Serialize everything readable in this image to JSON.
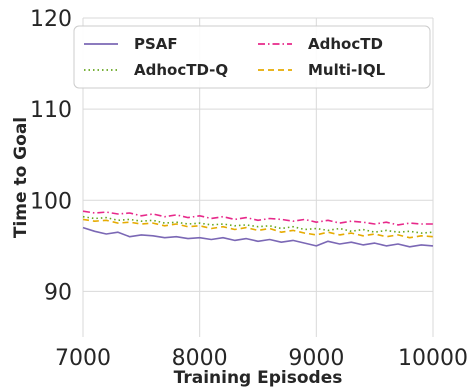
{
  "chart_data": {
    "type": "line",
    "xlabel": "Training Episodes",
    "ylabel": "Time to Goal",
    "xlim": [
      7000,
      10000
    ],
    "ylim": [
      85,
      120
    ],
    "xticks": [
      7000,
      8000,
      9000,
      10000
    ],
    "yticks": [
      90,
      100,
      110,
      120
    ],
    "grid": true,
    "legend": {
      "placement": "top",
      "columns": 2
    },
    "x": [
      7000,
      7100,
      7200,
      7300,
      7400,
      7500,
      7600,
      7700,
      7800,
      7900,
      8000,
      8100,
      8200,
      8300,
      8400,
      8500,
      8600,
      8700,
      8800,
      8900,
      9000,
      9100,
      9200,
      9300,
      9400,
      9500,
      9600,
      9700,
      9800,
      9900,
      10000
    ],
    "series": [
      {
        "name": "PSAF",
        "color": "#7b68b5",
        "dash": "solid",
        "values": [
          97.0,
          96.6,
          96.3,
          96.5,
          96.0,
          96.2,
          96.1,
          95.9,
          96.0,
          95.8,
          95.9,
          95.7,
          95.9,
          95.6,
          95.8,
          95.5,
          95.7,
          95.4,
          95.6,
          95.3,
          95.0,
          95.5,
          95.2,
          95.4,
          95.1,
          95.3,
          95.0,
          95.2,
          94.9,
          95.1,
          95.0
        ]
      },
      {
        "name": "AdhocTD",
        "color": "#e7298a",
        "dash": "dashdot",
        "values": [
          98.8,
          98.6,
          98.7,
          98.5,
          98.6,
          98.3,
          98.5,
          98.2,
          98.4,
          98.1,
          98.3,
          98.0,
          98.2,
          97.9,
          98.1,
          97.8,
          98.0,
          97.9,
          97.7,
          97.9,
          97.6,
          97.8,
          97.5,
          97.7,
          97.6,
          97.4,
          97.6,
          97.3,
          97.5,
          97.4,
          97.4
        ]
      },
      {
        "name": "AdhocTD-Q",
        "color": "#66a61e",
        "dash": "dotted",
        "values": [
          98.2,
          98.0,
          98.1,
          97.8,
          97.9,
          97.7,
          97.8,
          97.5,
          97.6,
          97.4,
          97.5,
          97.3,
          97.4,
          97.2,
          97.3,
          97.1,
          97.2,
          96.9,
          97.1,
          96.8,
          96.9,
          96.7,
          96.9,
          96.6,
          96.8,
          96.5,
          96.7,
          96.5,
          96.6,
          96.4,
          96.5
        ]
      },
      {
        "name": "Multi-IQL",
        "color": "#e6ab02",
        "dash": "dashed",
        "values": [
          97.9,
          97.7,
          97.8,
          97.5,
          97.6,
          97.4,
          97.5,
          97.2,
          97.4,
          97.1,
          97.2,
          96.9,
          97.1,
          96.8,
          97.0,
          96.7,
          96.9,
          96.5,
          96.7,
          96.4,
          96.2,
          96.5,
          96.2,
          96.4,
          96.1,
          96.3,
          96.0,
          96.2,
          95.9,
          96.1,
          96.0
        ]
      }
    ]
  }
}
